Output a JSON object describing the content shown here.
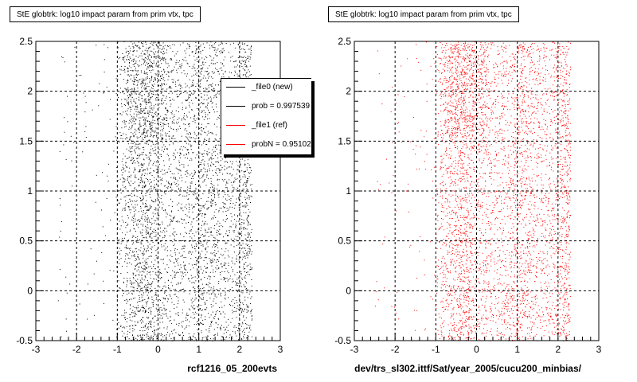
{
  "footer_text": "",
  "chart_data": [
    {
      "type": "scatter",
      "title": "StE globtrk: log10 impact param from prim vtx, tpc",
      "xlabel": "rcf1216_05_200evts",
      "ylabel": "",
      "xlim": [
        -3,
        3
      ],
      "ylim": [
        -0.5,
        2.5
      ],
      "xticks": [
        "-3",
        "-2",
        "-1",
        "0",
        "1",
        "2",
        "3"
      ],
      "yticks": [
        "-0.5",
        "0",
        "0.5",
        "1",
        "1.5",
        "2",
        "2.5"
      ],
      "grid": true,
      "color": "#000000",
      "legend": {
        "position": "top-right",
        "entries": [
          {
            "label": "_file0 (new)",
            "color": "#000000"
          },
          {
            "label": "prob = 0.997539",
            "color": "#000000"
          },
          {
            "label": "_file1 (ref)",
            "color": "#ff0000"
          },
          {
            "label": "probN = 0.951023",
            "color": "#ff0000"
          }
        ]
      },
      "density_x_range": [
        -1.1,
        2.3
      ],
      "dense_region": {
        "x": [
          -0.6,
          0.1
        ],
        "y": [
          1.5,
          2.5
        ]
      }
    },
    {
      "type": "scatter",
      "title": "StE globtrk: log10 impact param from prim vtx, tpc",
      "xlabel": "dev/trs_sl302.ittf/Sat/year_2005/cucu200_minbias/",
      "ylabel": "",
      "xlim": [
        -3,
        3
      ],
      "ylim": [
        -0.5,
        2.5
      ],
      "xticks": [
        "-3",
        "-2",
        "-1",
        "0",
        "1",
        "2",
        "3"
      ],
      "yticks": [
        "-0.5",
        "0",
        "0.5",
        "1",
        "1.5",
        "2",
        "2.5"
      ],
      "grid": true,
      "color": "#ff0000",
      "density_x_range": [
        -1.1,
        2.3
      ],
      "dense_region": {
        "x": [
          -0.6,
          0.1
        ],
        "y": [
          1.5,
          2.5
        ]
      }
    }
  ]
}
